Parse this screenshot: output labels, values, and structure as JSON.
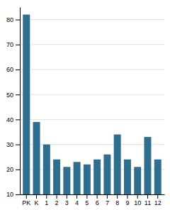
{
  "chart_data": {
    "type": "bar",
    "categories": [
      "PK",
      "K",
      "1",
      "2",
      "3",
      "4",
      "5",
      "6",
      "7",
      "8",
      "9",
      "10",
      "11",
      "12"
    ],
    "values": [
      82,
      39,
      30,
      24,
      21,
      23,
      22,
      24,
      26,
      34,
      24,
      21,
      33,
      24
    ],
    "color": "#2e6e8e",
    "ylim": [
      10,
      85
    ],
    "yticks": [
      10,
      20,
      30,
      40,
      50,
      60,
      70,
      80
    ],
    "grid": true
  }
}
